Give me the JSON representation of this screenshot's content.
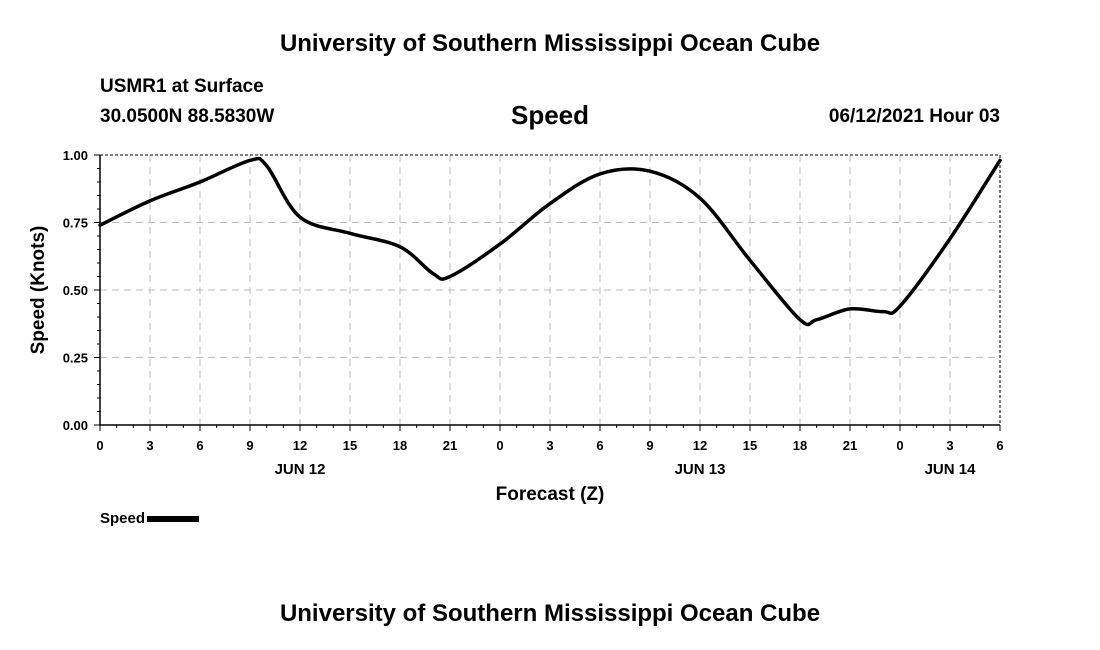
{
  "header": {
    "title": "University of Southern Mississippi Ocean Cube",
    "station": "USMR1 at Surface",
    "coords": "30.0500N  88.5830W",
    "datetime": "06/12/2021 Hour 03"
  },
  "footer": {
    "title": "University of Southern Mississippi Ocean Cube"
  },
  "legend": {
    "label": "Speed",
    "color": "#000000"
  },
  "chart_data": {
    "type": "line",
    "title": "Speed",
    "xlabel": "Forecast (Z)",
    "ylabel": "Speed (Knots)",
    "ylim": [
      0,
      1
    ],
    "yticks": [
      "0.00",
      "0.25",
      "0.50",
      "0.75",
      "1.00"
    ],
    "xlim": [
      0,
      54
    ],
    "xticks": [
      "0",
      "3",
      "6",
      "9",
      "12",
      "15",
      "18",
      "21",
      "0",
      "3",
      "6",
      "9",
      "12",
      "15",
      "18",
      "21",
      "0",
      "3",
      "6"
    ],
    "date_labels": [
      {
        "label": "JUN 12",
        "at": 12
      },
      {
        "label": "JUN 13",
        "at": 36
      },
      {
        "label": "JUN 14",
        "at": 51
      }
    ],
    "grid": true,
    "series": [
      {
        "name": "Speed",
        "color": "#000000",
        "x": [
          0,
          3,
          6,
          9,
          10,
          12,
          15,
          18,
          20,
          21,
          24,
          27,
          30,
          33,
          36,
          39,
          42,
          43,
          45,
          47,
          48,
          51,
          54
        ],
        "values": [
          0.74,
          0.83,
          0.9,
          0.98,
          0.96,
          0.77,
          0.71,
          0.66,
          0.56,
          0.55,
          0.67,
          0.82,
          0.93,
          0.94,
          0.84,
          0.61,
          0.39,
          0.39,
          0.43,
          0.42,
          0.44,
          0.69,
          0.98
        ]
      }
    ]
  }
}
